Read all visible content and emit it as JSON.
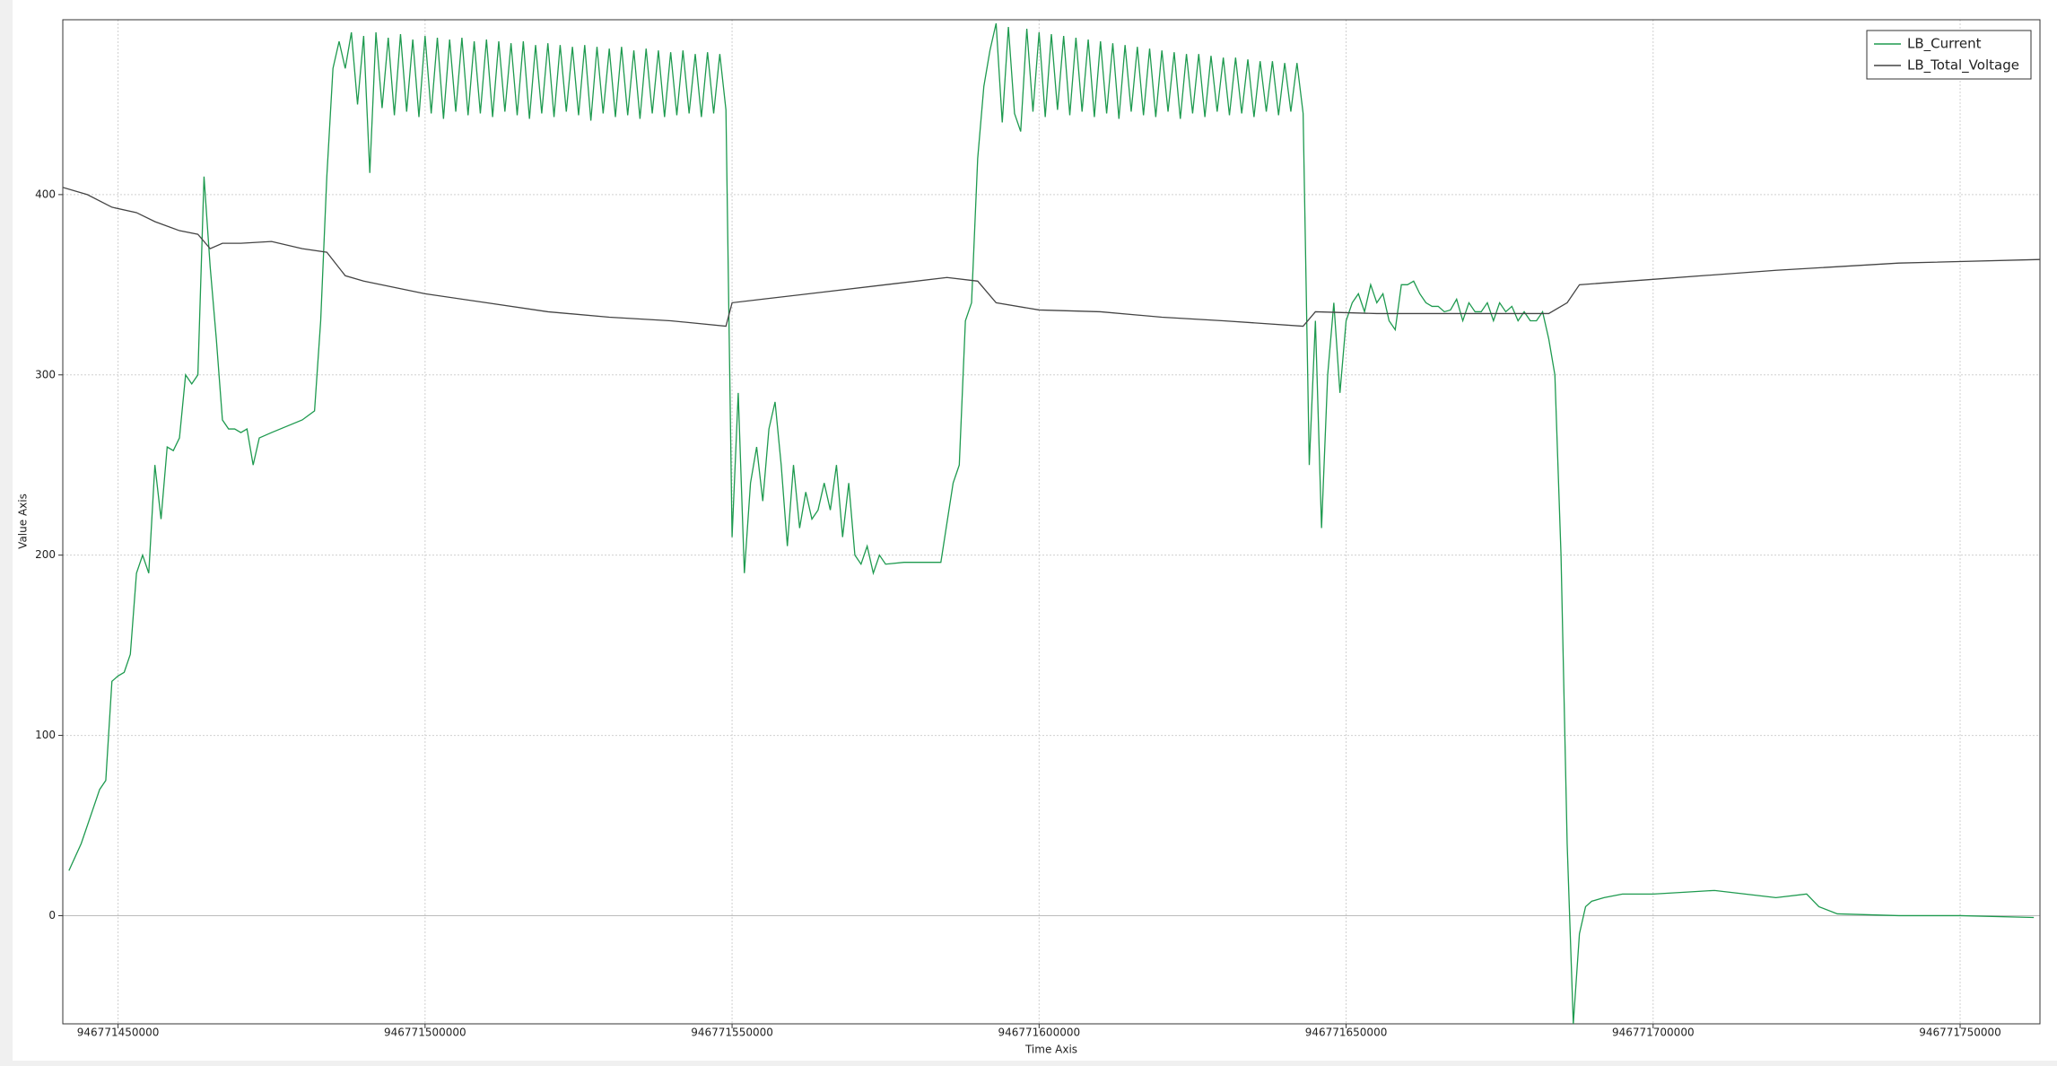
{
  "chart_data": {
    "type": "line",
    "x_label": "Time Axis",
    "y_label": "Value Axis",
    "xlim": [
      946771441000,
      946771763000
    ],
    "xticks": [
      946771450000,
      946771500000,
      946771550000,
      946771600000,
      946771650000,
      946771700000,
      946771750000
    ],
    "ylim": [
      -60,
      497
    ],
    "yticks": [
      0,
      100,
      200,
      300,
      400
    ],
    "grid": true,
    "legend": "top-right",
    "series": [
      {
        "name": "LB_Current",
        "color": "#1e9a4f",
        "x": [
          946771442000,
          946771444000,
          946771446000,
          946771447000,
          946771448000,
          946771449000,
          946771450000,
          946771451000,
          946771452000,
          946771453000,
          946771454000,
          946771455000,
          946771456000,
          946771457000,
          946771458000,
          946771459000,
          946771460000,
          946771461000,
          946771462000,
          946771463000,
          946771464000,
          946771465000,
          946771466000,
          946771467000,
          946771468000,
          946771469000,
          946771470000,
          946771471000,
          946771472000,
          946771473000,
          946771475000,
          946771480000,
          946771482000,
          946771483000,
          946771484000,
          946771485000,
          946771486000,
          946771487000,
          946771488000,
          946771489000,
          946771490000,
          946771491000,
          946771492000,
          946771493000,
          946771494000,
          946771495000,
          946771496000,
          946771497000,
          946771498000,
          946771499000,
          946771500000,
          946771501000,
          946771502000,
          946771503000,
          946771504000,
          946771505000,
          946771506000,
          946771507000,
          946771508000,
          946771509000,
          946771510000,
          946771511000,
          946771512000,
          946771513000,
          946771514000,
          946771515000,
          946771516000,
          946771517000,
          946771518000,
          946771519000,
          946771520000,
          946771521000,
          946771522000,
          946771523000,
          946771524000,
          946771525000,
          946771526000,
          946771527000,
          946771528000,
          946771529000,
          946771530000,
          946771531000,
          946771532000,
          946771533000,
          946771534000,
          946771535000,
          946771536000,
          946771537000,
          946771538000,
          946771539000,
          946771540000,
          946771541000,
          946771542000,
          946771543000,
          946771544000,
          946771545000,
          946771546000,
          946771547000,
          946771548000,
          946771549000,
          946771550000,
          946771551000,
          946771552000,
          946771553000,
          946771554000,
          946771555000,
          946771556000,
          946771557000,
          946771558000,
          946771559000,
          946771560000,
          946771561000,
          946771562000,
          946771563000,
          946771564000,
          946771565000,
          946771566000,
          946771567000,
          946771568000,
          946771569000,
          946771570000,
          946771571000,
          946771572000,
          946771573000,
          946771574000,
          946771575000,
          946771578000,
          946771584000,
          946771586000,
          946771587000,
          946771588000,
          946771589000,
          946771590000,
          946771591000,
          946771592000,
          946771593000,
          946771594000,
          946771595000,
          946771596000,
          946771597000,
          946771598000,
          946771599000,
          946771600000,
          946771601000,
          946771602000,
          946771603000,
          946771604000,
          946771605000,
          946771606000,
          946771607000,
          946771608000,
          946771609000,
          946771610000,
          946771611000,
          946771612000,
          946771613000,
          946771614000,
          946771615000,
          946771616000,
          946771617000,
          946771618000,
          946771619000,
          946771620000,
          946771621000,
          946771622000,
          946771623000,
          946771624000,
          946771625000,
          946771626000,
          946771627000,
          946771628000,
          946771629000,
          946771630000,
          946771631000,
          946771632000,
          946771633000,
          946771634000,
          946771635000,
          946771636000,
          946771637000,
          946771638000,
          946771639000,
          946771640000,
          946771641000,
          946771642000,
          946771643000,
          946771644000,
          946771645000,
          946771646000,
          946771647000,
          946771648000,
          946771649000,
          946771650000,
          946771651000,
          946771652000,
          946771653000,
          946771654000,
          946771655000,
          946771656000,
          946771657000,
          946771658000,
          946771659000,
          946771660000,
          946771661000,
          946771662000,
          946771663000,
          946771664000,
          946771665000,
          946771666000,
          946771667000,
          946771668000,
          946771669000,
          946771670000,
          946771671000,
          946771672000,
          946771673000,
          946771674000,
          946771675000,
          946771676000,
          946771677000,
          946771678000,
          946771679000,
          946771680000,
          946771681000,
          946771682000,
          946771683000,
          946771684000,
          946771685000,
          946771686000,
          946771687000,
          946771688000,
          946771689000,
          946771690000,
          946771692000,
          946771695000,
          946771700000,
          946771705000,
          946771710000,
          946771715000,
          946771720000,
          946771725000,
          946771727000,
          946771730000,
          946771740000,
          946771750000,
          946771762000
        ],
        "values": [
          25,
          40,
          60,
          70,
          75,
          130,
          133,
          135,
          145,
          190,
          200,
          190,
          250,
          220,
          260,
          258,
          265,
          300,
          295,
          300,
          410,
          360,
          320,
          275,
          270,
          270,
          268,
          270,
          250,
          265,
          268,
          275,
          280,
          330,
          410,
          470,
          485,
          470,
          490,
          450,
          488,
          412,
          490,
          448,
          487,
          444,
          489,
          446,
          486,
          443,
          488,
          445,
          487,
          442,
          486,
          446,
          487,
          444,
          485,
          445,
          486,
          443,
          485,
          446,
          484,
          444,
          485,
          442,
          483,
          445,
          484,
          443,
          483,
          446,
          482,
          444,
          483,
          441,
          482,
          445,
          481,
          443,
          482,
          444,
          480,
          442,
          481,
          445,
          480,
          443,
          479,
          444,
          480,
          445,
          478,
          443,
          479,
          445,
          478,
          447,
          210,
          290,
          190,
          240,
          260,
          230,
          270,
          285,
          250,
          205,
          250,
          215,
          235,
          220,
          225,
          240,
          225,
          250,
          210,
          240,
          200,
          195,
          205,
          190,
          200,
          195,
          196,
          196,
          240,
          250,
          330,
          340,
          420,
          460,
          480,
          495,
          440,
          493,
          445,
          435,
          492,
          446,
          490,
          443,
          489,
          447,
          488,
          444,
          487,
          446,
          486,
          443,
          485,
          445,
          484,
          442,
          483,
          446,
          482,
          444,
          481,
          443,
          480,
          446,
          479,
          442,
          478,
          445,
          478,
          443,
          477,
          446,
          476,
          444,
          476,
          445,
          475,
          443,
          474,
          446,
          474,
          444,
          473,
          446,
          473,
          445,
          250,
          330,
          215,
          300,
          340,
          290,
          330,
          340,
          345,
          335,
          350,
          340,
          345,
          330,
          325,
          350,
          350,
          352,
          345,
          340,
          338,
          338,
          335,
          336,
          342,
          330,
          340,
          335,
          335,
          340,
          330,
          340,
          335,
          338,
          330,
          335,
          330,
          330,
          335,
          320,
          300,
          200,
          40,
          -60,
          -10,
          5,
          8,
          10,
          12,
          12,
          13,
          14,
          12,
          10,
          12,
          5,
          1,
          0,
          0,
          -1
        ]
      },
      {
        "name": "LB_Total_Voltage",
        "color": "#444444",
        "x": [
          946771441000,
          946771445000,
          946771449000,
          946771453000,
          946771456000,
          946771460000,
          946771463000,
          946771465000,
          946771467000,
          946771470000,
          946771475000,
          946771480000,
          946771484000,
          946771487000,
          946771490000,
          946771500000,
          946771510000,
          946771520000,
          946771530000,
          946771540000,
          946771549000,
          946771550000,
          946771555000,
          946771565000,
          946771575000,
          946771585000,
          946771590000,
          946771593000,
          946771600000,
          946771610000,
          946771620000,
          946771630000,
          946771643000,
          946771645000,
          946771655000,
          946771665000,
          946771675000,
          946771683000,
          946771686000,
          946771688000,
          946771700000,
          946771720000,
          946771740000,
          946771763000
        ],
        "values": [
          404,
          400,
          393,
          390,
          385,
          380,
          378,
          370,
          373,
          373,
          374,
          370,
          368,
          355,
          352,
          345,
          340,
          335,
          332,
          330,
          327,
          340,
          342,
          346,
          350,
          354,
          352,
          340,
          336,
          335,
          332,
          330,
          327,
          335,
          334,
          334,
          334,
          334,
          340,
          350,
          353,
          358,
          362,
          364
        ]
      }
    ]
  }
}
